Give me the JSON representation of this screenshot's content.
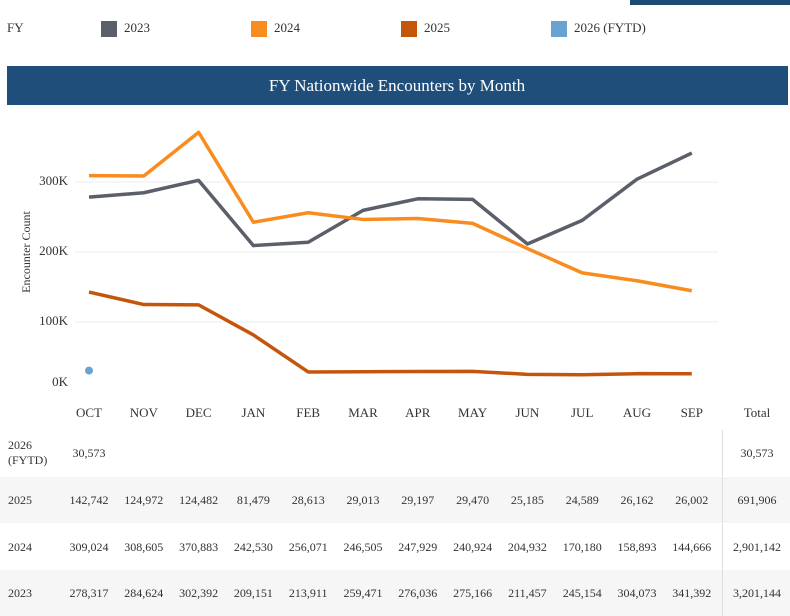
{
  "chart_data": {
    "type": "line",
    "title": "FY Nationwide Encounters by Month",
    "legend_title": "FY",
    "y_label": "Encounter Count",
    "categories": [
      "OCT",
      "NOV",
      "DEC",
      "JAN",
      "FEB",
      "MAR",
      "APR",
      "MAY",
      "JUN",
      "JUL",
      "AUG",
      "SEP"
    ],
    "series": [
      {
        "name": "2023",
        "color": "#5b5f6a",
        "values": [
          278317,
          284624,
          302392,
          209151,
          213911,
          259471,
          276036,
          275166,
          211457,
          245154,
          304073,
          341392
        ]
      },
      {
        "name": "2024",
        "color": "#f98c1e",
        "values": [
          309024,
          308605,
          370883,
          242530,
          256071,
          246505,
          247929,
          240924,
          204932,
          170180,
          158893,
          144666
        ]
      },
      {
        "name": "2025",
        "color": "#c4560b",
        "values": [
          142742,
          124972,
          124482,
          81479,
          28613,
          29013,
          29197,
          29470,
          25185,
          24589,
          26162,
          26002
        ]
      },
      {
        "name": "2026 (FYTD)",
        "color": "#6aa3cf",
        "values": [
          30573,
          null,
          null,
          null,
          null,
          null,
          null,
          null,
          null,
          null,
          null,
          null
        ]
      }
    ],
    "ylim": [
      0,
      400000
    ],
    "yticks": [
      {
        "value": 0,
        "label": "0K"
      },
      {
        "value": 100000,
        "label": "100K"
      },
      {
        "value": 200000,
        "label": "200K"
      },
      {
        "value": 300000,
        "label": "300K"
      }
    ],
    "grid": true
  },
  "table": {
    "total_header": "Total",
    "rows": [
      {
        "label": "2026 (FYTD)",
        "cells": [
          "30,573"
        ],
        "total": "30,573"
      },
      {
        "label": "2025",
        "cells": [
          "142,742",
          "124,972",
          "124,482",
          "81,479",
          "28,613",
          "29,013",
          "29,197",
          "29,470",
          "25,185",
          "24,589",
          "26,162",
          "26,002"
        ],
        "total": "691,906"
      },
      {
        "label": "2024",
        "cells": [
          "309,024",
          "308,605",
          "370,883",
          "242,530",
          "256,071",
          "246,505",
          "247,929",
          "240,924",
          "204,932",
          "170,180",
          "158,893",
          "144,666"
        ],
        "total": "2,901,142"
      },
      {
        "label": "2023",
        "cells": [
          "278,317",
          "284,624",
          "302,392",
          "209,151",
          "213,911",
          "259,471",
          "276,036",
          "275,166",
          "211,457",
          "245,154",
          "304,073",
          "341,392"
        ],
        "total": "3,201,144"
      }
    ]
  }
}
